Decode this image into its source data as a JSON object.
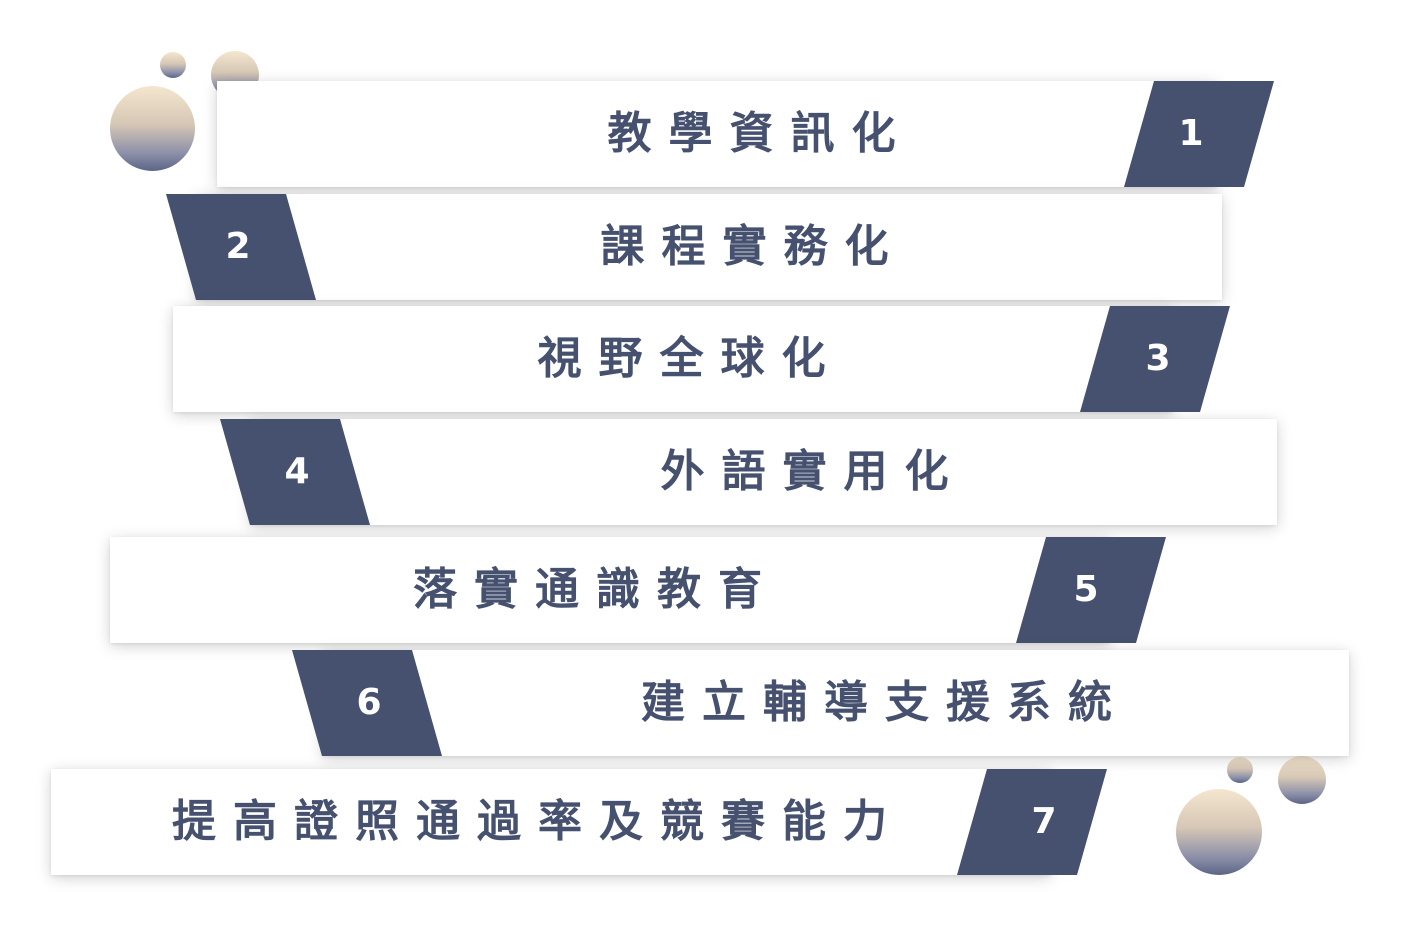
{
  "colors": {
    "accent": "#46516f",
    "text": "#46516f",
    "bubble_top": "#f5e6cf",
    "bubble_bottom": "#5c6586"
  },
  "items": [
    {
      "number": "1",
      "label": "教學資訊化"
    },
    {
      "number": "2",
      "label": "課程實務化"
    },
    {
      "number": "3",
      "label": "視野全球化"
    },
    {
      "number": "4",
      "label": "外語實用化"
    },
    {
      "number": "5",
      "label": "落實通識教育"
    },
    {
      "number": "6",
      "label": "建立輔導支援系統"
    },
    {
      "number": "7",
      "label": "提高證照通過率及競賽能力"
    }
  ]
}
